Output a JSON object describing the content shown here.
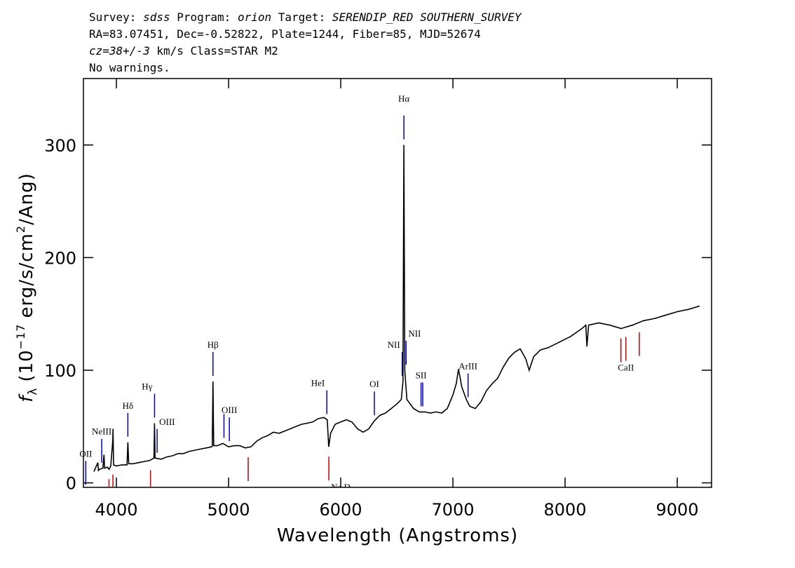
{
  "chart_data": {
    "type": "line",
    "header": [
      [
        "Survey:",
        "sdss",
        "Program:",
        "orion",
        "Target:",
        "SERENDIP_RED SOUTHERN_SURVEY"
      ],
      [
        "RA=83.07451, Dec=-0.52822, Plate=1244, Fiber=85, MJD=52674"
      ],
      [
        "cz=38+/-3",
        "km/s Class=STAR M2"
      ],
      [
        "No warnings."
      ]
    ],
    "x_label": "Wavelength (Angstroms)",
    "y_label": [
      "f",
      "λ",
      "(10",
      "−17",
      "erg/s/cm",
      "2",
      "/Ang)"
    ],
    "xlim": [
      3706,
      9306
    ],
    "ylim": [
      -4,
      359
    ],
    "xticks": [
      4000,
      5000,
      6000,
      7000,
      8000,
      9000
    ],
    "yticks": [
      0,
      100,
      200,
      300
    ],
    "color": "#000000",
    "x": [
      3800,
      3835,
      3840,
      3850,
      3880,
      3889,
      3895,
      3920,
      3934,
      3950,
      3968,
      3970,
      3975,
      4000,
      4050,
      4095,
      4102,
      4110,
      4150,
      4200,
      4250,
      4300,
      4335,
      4340,
      4345,
      4400,
      4450,
      4500,
      4550,
      4600,
      4650,
      4700,
      4750,
      4800,
      4850,
      4855,
      4861,
      4867,
      4900,
      4950,
      5000,
      5050,
      5100,
      5150,
      5200,
      5250,
      5300,
      5350,
      5400,
      5450,
      5500,
      5550,
      5600,
      5650,
      5700,
      5750,
      5800,
      5850,
      5880,
      5893,
      5910,
      5950,
      6000,
      6050,
      6100,
      6150,
      6200,
      6250,
      6300,
      6350,
      6400,
      6450,
      6500,
      6540,
      6555,
      6563,
      6571,
      6590,
      6650,
      6700,
      6750,
      6800,
      6850,
      6900,
      6950,
      7000,
      7030,
      7050,
      7080,
      7120,
      7150,
      7200,
      7250,
      7300,
      7350,
      7400,
      7450,
      7500,
      7550,
      7600,
      7650,
      7680,
      7720,
      7780,
      7850,
      7950,
      8050,
      8150,
      8185,
      8195,
      8210,
      8300,
      8400,
      8500,
      8600,
      8700,
      8800,
      8900,
      9000,
      9100,
      9200
    ],
    "values": [
      10,
      18,
      11,
      12,
      13,
      25,
      13,
      14,
      12,
      15,
      38,
      48,
      16,
      15,
      16,
      16,
      36,
      17,
      17,
      18,
      19,
      20,
      22,
      53,
      22,
      21,
      23,
      24,
      26,
      26,
      28,
      29,
      30,
      31,
      32,
      33,
      90,
      33,
      33,
      35,
      32,
      33,
      33,
      31,
      32,
      37,
      40,
      42,
      45,
      44,
      46,
      48,
      50,
      52,
      53,
      54,
      57,
      58,
      56,
      32,
      44,
      52,
      54,
      56,
      54,
      48,
      45,
      48,
      55,
      60,
      62,
      66,
      70,
      74,
      90,
      300,
      100,
      74,
      66,
      63,
      63,
      62,
      63,
      62,
      66,
      78,
      88,
      101,
      85,
      74,
      68,
      66,
      72,
      82,
      88,
      93,
      103,
      111,
      116,
      119,
      110,
      100,
      112,
      118,
      120,
      125,
      130,
      137,
      140,
      121,
      140,
      142,
      140,
      137,
      140,
      144,
      146,
      149,
      152,
      154,
      157
    ],
    "lines": [
      {
        "label": "OII",
        "x": 3727,
        "color": "#0000cc"
      },
      {
        "label": "NeIII",
        "x": 3869,
        "color": "#0000cc"
      },
      {
        "label": "Hδ",
        "x": 4102,
        "color": "#0000cc"
      },
      {
        "label": "Hγ",
        "x": 4340,
        "color": "#0000cc"
      },
      {
        "label": "OIII",
        "x": 4363,
        "color": "#0000cc"
      },
      {
        "label": "Hβ",
        "x": 4861,
        "color": "#0000cc"
      },
      {
        "label": null,
        "x": 4959,
        "color": "#0000cc"
      },
      {
        "label": "OIII",
        "x": 5007,
        "color": "#0000cc"
      },
      {
        "label": "HeI",
        "x": 5876,
        "color": "#0000cc"
      },
      {
        "label": "OI",
        "x": 6300,
        "color": "#0000cc"
      },
      {
        "label": "NII",
        "x": 6548,
        "color": "#0000cc"
      },
      {
        "label": "Hα",
        "x": 6563,
        "color": "#0000cc"
      },
      {
        "label": "NII",
        "x": 6583,
        "color": "#0000cc"
      },
      {
        "label": "SII",
        "x": 6716,
        "color": "#0000cc"
      },
      {
        "label": null,
        "x": 6731,
        "color": "#0000cc"
      },
      {
        "label": "ArIII",
        "x": 7135,
        "color": "#0000cc"
      },
      {
        "label": null,
        "x": 3934,
        "color": "#cc0000"
      },
      {
        "label": null,
        "x": 3969,
        "color": "#cc0000"
      },
      {
        "label": null,
        "x": 4304,
        "color": "#cc0000"
      },
      {
        "label": null,
        "x": 5175,
        "color": "#cc0000"
      },
      {
        "label": "Na D",
        "x": 5894,
        "color": "#cc0000"
      },
      {
        "label": null,
        "x": 8498,
        "color": "#cc0000"
      },
      {
        "label": "CaII",
        "x": 8542,
        "color": "#cc0000"
      },
      {
        "label": null,
        "x": 8662,
        "color": "#cc0000"
      }
    ]
  }
}
